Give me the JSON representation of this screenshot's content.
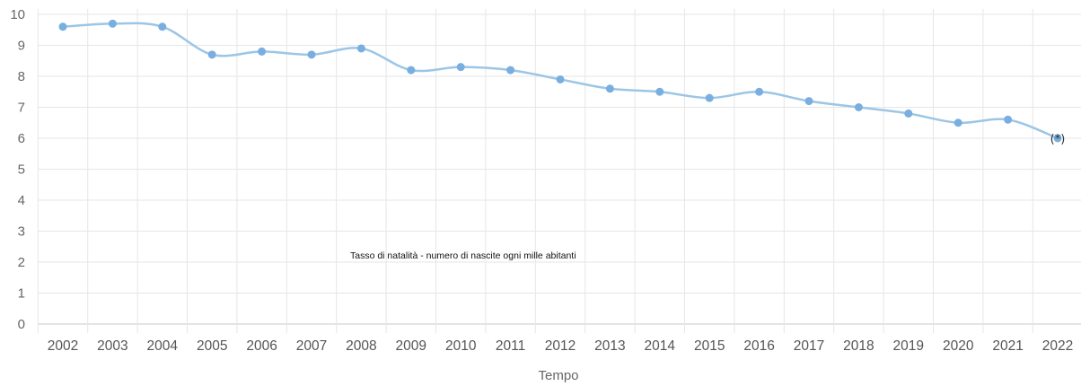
{
  "chart_data": {
    "type": "line",
    "title": "",
    "xlabel": "Tempo",
    "ylabel": "",
    "annotation": "Tasso di natalità - numero di nascite ogni mille abitanti",
    "ylim": [
      0,
      10
    ],
    "yticks": [
      "0",
      "1",
      "2",
      "3",
      "4",
      "5",
      "6",
      "7",
      "8",
      "9",
      "10"
    ],
    "categories": [
      "2002",
      "2003",
      "2004",
      "2005",
      "2006",
      "2007",
      "2008",
      "2009",
      "2010",
      "2011",
      "2012",
      "2013",
      "2014",
      "2015",
      "2016",
      "2017",
      "2018",
      "2019",
      "2020",
      "2021",
      "2022"
    ],
    "series": [
      {
        "values": [
          9.6,
          9.7,
          9.6,
          8.7,
          8.8,
          8.7,
          8.9,
          8.2,
          8.3,
          8.2,
          7.9,
          7.6,
          7.5,
          7.3,
          7.5,
          7.2,
          7.0,
          6.8,
          6.5,
          6.6,
          6.0
        ]
      }
    ],
    "last_point_marker": "(*)",
    "grid": true,
    "line_color": "#9cc6e6",
    "point_color": "#79aee0"
  }
}
